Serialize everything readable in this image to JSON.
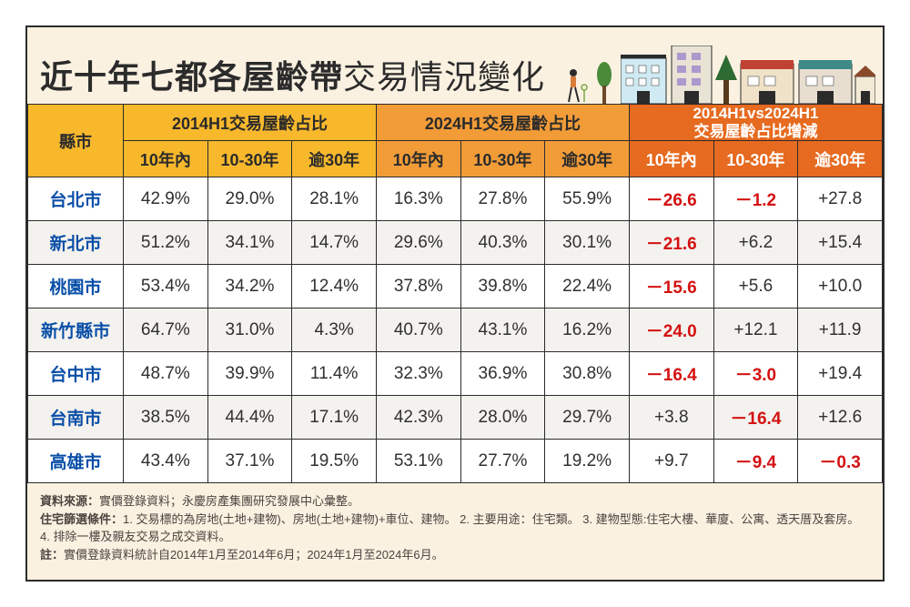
{
  "title_bold": "近十年七都各屋齡帶",
  "title_light": "交易情況變化",
  "header": {
    "city": "縣市",
    "group_2014": "2014H1交易屋齡占比",
    "group_2024": "2024H1交易屋齡占比",
    "group_diff_line1": "2014H1vs2024H1",
    "group_diff_line2": "交易屋齡占比增減",
    "sub_10": "10年內",
    "sub_1030": "10-30年",
    "sub_30": "逾30年"
  },
  "rows": [
    {
      "city": "台北市",
      "a1": "42.9%",
      "a2": "29.0%",
      "a3": "28.1%",
      "b1": "16.3%",
      "b2": "27.8%",
      "b3": "55.9%",
      "c1": {
        "v": "－26.6",
        "neg": true
      },
      "c2": {
        "v": "－1.2",
        "neg": true
      },
      "c3": {
        "v": "+27.8",
        "neg": false
      }
    },
    {
      "city": "新北市",
      "a1": "51.2%",
      "a2": "34.1%",
      "a3": "14.7%",
      "b1": "29.6%",
      "b2": "40.3%",
      "b3": "30.1%",
      "c1": {
        "v": "－21.6",
        "neg": true
      },
      "c2": {
        "v": "+6.2",
        "neg": false
      },
      "c3": {
        "v": "+15.4",
        "neg": false
      }
    },
    {
      "city": "桃園市",
      "a1": "53.4%",
      "a2": "34.2%",
      "a3": "12.4%",
      "b1": "37.8%",
      "b2": "39.8%",
      "b3": "22.4%",
      "c1": {
        "v": "－15.6",
        "neg": true
      },
      "c2": {
        "v": "+5.6",
        "neg": false
      },
      "c3": {
        "v": "+10.0",
        "neg": false
      }
    },
    {
      "city": "新竹縣市",
      "a1": "64.7%",
      "a2": "31.0%",
      "a3": "4.3%",
      "b1": "40.7%",
      "b2": "43.1%",
      "b3": "16.2%",
      "c1": {
        "v": "－24.0",
        "neg": true
      },
      "c2": {
        "v": "+12.1",
        "neg": false
      },
      "c3": {
        "v": "+11.9",
        "neg": false
      }
    },
    {
      "city": "台中市",
      "a1": "48.7%",
      "a2": "39.9%",
      "a3": "11.4%",
      "b1": "32.3%",
      "b2": "36.9%",
      "b3": "30.8%",
      "c1": {
        "v": "－16.4",
        "neg": true
      },
      "c2": {
        "v": "－3.0",
        "neg": true
      },
      "c3": {
        "v": "+19.4",
        "neg": false
      }
    },
    {
      "city": "台南市",
      "a1": "38.5%",
      "a2": "44.4%",
      "a3": "17.1%",
      "b1": "42.3%",
      "b2": "28.0%",
      "b3": "29.7%",
      "c1": {
        "v": "+3.8",
        "neg": false
      },
      "c2": {
        "v": "－16.4",
        "neg": true
      },
      "c3": {
        "v": "+12.6",
        "neg": false
      }
    },
    {
      "city": "高雄市",
      "a1": "43.4%",
      "a2": "37.1%",
      "a3": "19.5%",
      "b1": "53.1%",
      "b2": "27.7%",
      "b3": "19.2%",
      "c1": {
        "v": "+9.7",
        "neg": false
      },
      "c2": {
        "v": "－9.4",
        "neg": true
      },
      "c3": {
        "v": "－0.3",
        "neg": true
      }
    }
  ],
  "footer": {
    "source_label": "資料來源：",
    "source_text": "實價登錄資料；永慶房產集團研究發展中心彙整。",
    "filter_label": "住宅篩選條件：",
    "filter_text": "1. 交易標的為房地(土地+建物)、房地(土地+建物)+車位、建物。 2. 主要用途：住宅類。 3. 建物型態:住宅大樓、華廈、公寓、透天厝及套房。 4. 排除一樓及親友交易之成交資料。",
    "note_label": "註：",
    "note_text": "實價登錄資料統計自2014年1月至2014年6月；2024年1月至2024年6月。"
  },
  "colors": {
    "canvas_bg": "#fbf1e1",
    "border": "#2b2b2b",
    "yellow": "#f8b82c",
    "light_orange": "#f29c38",
    "dark_orange": "#e66a1f",
    "city_text": "#0a4fa8",
    "neg_text": "#d41111",
    "row_even": "#f4f2ee",
    "row_odd": "#ffffff"
  }
}
